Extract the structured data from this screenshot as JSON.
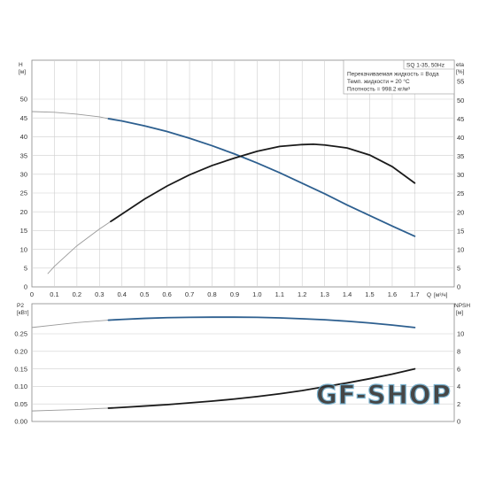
{
  "chart_data": [
    {
      "type": "line",
      "title": "SQ 1-35, 50Hz",
      "annotations": [
        "Перекачиваемая жидкость = Вода",
        "Темп. жидкости = 20 °C",
        "Плотность = 998.2 кг/м³"
      ],
      "xlabel": "Q",
      "xunit": "[м³/ч]",
      "ylabel": "H",
      "yunit": "[м]",
      "y2label": "eta",
      "y2unit": "[%]",
      "xlim": [
        0,
        1.8
      ],
      "ylim": [
        0,
        50
      ],
      "y2lim": [
        0,
        60
      ],
      "xticks": [
        "0",
        "0.1",
        "0.2",
        "0.3",
        "0.4",
        "0.5",
        "0.6",
        "0.7",
        "0.8",
        "0.9",
        "1.0",
        "1.1",
        "1.2",
        "1.3",
        "1.4",
        "1.5",
        "1.6",
        "1.7"
      ],
      "yticks": [
        "0",
        "5",
        "10",
        "15",
        "20",
        "25",
        "30",
        "35",
        "40",
        "45",
        "50"
      ],
      "y2ticks": [
        "0",
        "5",
        "10",
        "15",
        "20",
        "25",
        "30",
        "35",
        "40",
        "45",
        "50",
        "55"
      ],
      "grid": true,
      "series": [
        {
          "axis": "left",
          "color": "#2d5f8f",
          "x": [
            0.0,
            0.1,
            0.2,
            0.3,
            0.34,
            0.4,
            0.5,
            0.6,
            0.7,
            0.8,
            0.9,
            1.0,
            1.1,
            1.2,
            1.3,
            1.4,
            1.5,
            1.6,
            1.7
          ],
          "y": [
            46.7,
            46.5,
            46.0,
            45.3,
            44.8,
            44.2,
            42.9,
            41.4,
            39.6,
            37.6,
            35.4,
            33.0,
            30.4,
            27.6,
            24.8,
            21.8,
            19.0,
            16.2,
            13.5
          ]
        },
        {
          "axis": "right",
          "color": "#1a1a1a",
          "x": [
            0.07,
            0.1,
            0.2,
            0.3,
            0.35,
            0.4,
            0.5,
            0.6,
            0.7,
            0.8,
            0.9,
            1.0,
            1.1,
            1.2,
            1.25,
            1.3,
            1.4,
            1.5,
            1.6,
            1.7
          ],
          "y": [
            3.5,
            5.5,
            11.0,
            15.5,
            17.5,
            19.5,
            23.5,
            27.0,
            30.0,
            32.5,
            34.5,
            36.3,
            37.6,
            38.1,
            38.2,
            38.0,
            37.2,
            35.3,
            32.2,
            27.8
          ]
        }
      ]
    },
    {
      "type": "line",
      "ylabel": "P2",
      "yunit": "[кВт]",
      "y2label": "NPSH",
      "y2unit": "[м]",
      "xlim": [
        0,
        1.8
      ],
      "ylim": [
        0,
        0.3
      ],
      "y2lim": [
        0,
        12
      ],
      "yticks": [
        "0.00",
        "0.05",
        "0.10",
        "0.15",
        "0.20",
        "0.25"
      ],
      "y2ticks": [
        "0",
        "2",
        "4",
        "6",
        "8",
        "10"
      ],
      "grid": true,
      "series": [
        {
          "axis": "left",
          "color": "#2d5f8f",
          "x": [
            0.0,
            0.1,
            0.2,
            0.3,
            0.34,
            0.4,
            0.5,
            0.6,
            0.7,
            0.8,
            0.9,
            1.0,
            1.1,
            1.2,
            1.3,
            1.4,
            1.5,
            1.6,
            1.7
          ],
          "y": [
            0.268,
            0.275,
            0.282,
            0.287,
            0.289,
            0.291,
            0.294,
            0.296,
            0.297,
            0.2975,
            0.2975,
            0.297,
            0.2955,
            0.293,
            0.29,
            0.286,
            0.281,
            0.275,
            0.268
          ]
        },
        {
          "axis": "left",
          "color": "#1a1a1a",
          "x": [
            0.0,
            0.1,
            0.2,
            0.3,
            0.34,
            0.4,
            0.5,
            0.6,
            0.7,
            0.8,
            0.9,
            1.0,
            1.1,
            1.2,
            1.3,
            1.4,
            1.5,
            1.6,
            1.7
          ],
          "y": [
            0.03,
            0.032,
            0.034,
            0.037,
            0.038,
            0.04,
            0.044,
            0.048,
            0.053,
            0.058,
            0.064,
            0.071,
            0.079,
            0.088,
            0.099,
            0.11,
            0.122,
            0.135,
            0.15
          ]
        }
      ]
    }
  ],
  "watermark": "GF-SHOP"
}
